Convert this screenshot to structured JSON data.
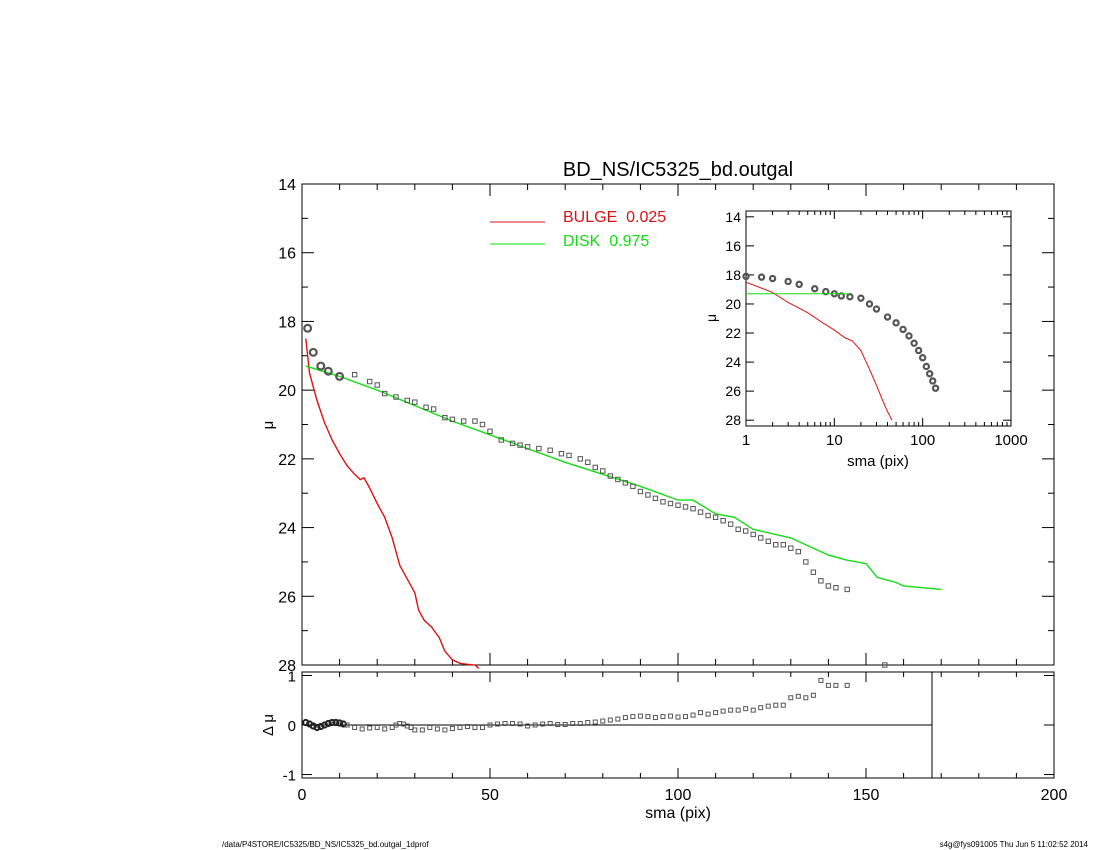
{
  "chart_data": [
    {
      "id": "main",
      "type": "line",
      "title": "BD_NS/IC5325_bd.outgal",
      "xlabel": "",
      "ylabel": "μ",
      "xlim": [
        0,
        200
      ],
      "ylim": [
        28,
        14
      ],
      "y_reversed": true,
      "y_ticks": [
        "14",
        "16",
        "18",
        "20",
        "22",
        "24",
        "26",
        "28"
      ],
      "legend_placement": "top-center",
      "legend": [
        {
          "label": "BULGE  0.025",
          "color": "#dd1111"
        },
        {
          "label": "DISK  0.975",
          "color": "#11dd11"
        }
      ],
      "series": [
        {
          "name": "BULGE  0.025",
          "style": "line",
          "color": "#dd1111",
          "x": [
            1,
            2,
            4,
            6,
            8,
            10,
            12,
            14,
            15.5,
            16.5,
            18,
            20,
            22,
            24,
            26,
            28,
            30,
            31,
            32.5,
            34.5,
            36.5,
            38,
            40,
            42,
            44,
            46,
            47
          ],
          "y": [
            18.5,
            19.5,
            20.3,
            20.95,
            21.45,
            21.85,
            22.2,
            22.45,
            22.6,
            22.55,
            22.85,
            23.3,
            23.7,
            24.3,
            25.1,
            25.5,
            25.9,
            26.4,
            26.7,
            26.9,
            27.2,
            27.6,
            27.85,
            27.95,
            27.98,
            28.0,
            28.1
          ]
        },
        {
          "name": "DISK  0.975",
          "style": "line",
          "color": "#11dd11",
          "x": [
            1,
            10,
            20,
            30,
            40,
            50,
            60,
            70,
            80,
            90,
            100,
            104,
            110,
            115,
            120,
            130,
            140,
            145,
            150,
            153,
            158,
            160,
            170
          ],
          "y": [
            19.3,
            19.6,
            20.0,
            20.45,
            20.9,
            21.3,
            21.7,
            22.1,
            22.45,
            22.8,
            23.2,
            23.2,
            23.6,
            23.7,
            24.05,
            24.3,
            24.8,
            24.95,
            25.05,
            25.45,
            25.6,
            25.7,
            25.8
          ]
        },
        {
          "name": "",
          "style": "points",
          "color": "#555555",
          "x": [
            1.5,
            3,
            5,
            7,
            10,
            14,
            18,
            20,
            22,
            25,
            28,
            30,
            33,
            35,
            38,
            40,
            43,
            46,
            48,
            50,
            53,
            56,
            58,
            60,
            63,
            66,
            69,
            71,
            74,
            76,
            78,
            80,
            82,
            84,
            86,
            88,
            90,
            92,
            94,
            96,
            98,
            100,
            102,
            104,
            106,
            108,
            110,
            112,
            114,
            116,
            118,
            120,
            122,
            124,
            126,
            128,
            130,
            132,
            134,
            136,
            138,
            140,
            142,
            145,
            155
          ],
          "y": [
            18.2,
            18.9,
            19.3,
            19.45,
            19.6,
            19.55,
            19.75,
            19.85,
            20.1,
            20.2,
            20.3,
            20.35,
            20.5,
            20.55,
            20.8,
            20.85,
            20.9,
            20.9,
            21.0,
            21.2,
            21.45,
            21.55,
            21.6,
            21.65,
            21.7,
            21.75,
            21.85,
            21.9,
            22.0,
            22.1,
            22.25,
            22.35,
            22.5,
            22.6,
            22.7,
            22.8,
            22.95,
            23.05,
            23.15,
            23.25,
            23.3,
            23.35,
            23.4,
            23.45,
            23.55,
            23.65,
            23.7,
            23.8,
            23.9,
            24.05,
            24.1,
            24.2,
            24.3,
            24.4,
            24.5,
            24.5,
            24.6,
            24.7,
            25.0,
            25.3,
            25.55,
            25.7,
            25.75,
            25.8,
            28.0
          ]
        }
      ]
    },
    {
      "id": "residual",
      "type": "scatter",
      "xlabel": "sma (pix)",
      "ylabel": "Δ μ",
      "xlim": [
        0,
        200
      ],
      "ylim": [
        -1,
        1
      ],
      "x_ticks": [
        "0",
        "50",
        "100",
        "150",
        "200"
      ],
      "y_ticks": [
        "1",
        "0",
        "-1"
      ],
      "series": [
        {
          "name": "",
          "color": "#555555",
          "x": [
            1,
            2,
            3,
            4,
            5,
            6,
            7,
            8,
            9,
            10,
            11,
            12,
            14,
            16,
            18,
            20,
            22,
            24,
            25,
            26,
            27,
            28,
            29,
            30,
            32,
            34,
            36,
            38,
            40,
            42,
            44,
            46,
            48,
            50,
            52,
            54,
            56,
            58,
            60,
            62,
            64,
            66,
            68,
            70,
            72,
            74,
            76,
            78,
            80,
            82,
            84,
            86,
            88,
            90,
            92,
            94,
            96,
            98,
            100,
            102,
            104,
            106,
            108,
            110,
            112,
            114,
            116,
            118,
            120,
            122,
            124,
            126,
            128,
            130,
            132,
            134,
            136,
            138,
            140,
            142,
            145
          ],
          "y": [
            0.05,
            0.02,
            -0.02,
            -0.05,
            -0.03,
            0.0,
            0.03,
            0.05,
            0.05,
            0.04,
            0.02,
            0.0,
            -0.05,
            -0.08,
            -0.06,
            -0.05,
            -0.08,
            -0.05,
            0.0,
            0.03,
            0.02,
            -0.02,
            -0.05,
            -0.1,
            -0.1,
            -0.05,
            -0.08,
            -0.1,
            -0.07,
            -0.05,
            -0.03,
            -0.05,
            -0.05,
            0.0,
            0.02,
            0.03,
            0.03,
            0.02,
            -0.02,
            0.0,
            0.02,
            0.03,
            0.01,
            0.01,
            0.03,
            0.03,
            0.05,
            0.06,
            0.08,
            0.1,
            0.12,
            0.15,
            0.17,
            0.18,
            0.17,
            0.15,
            0.17,
            0.18,
            0.16,
            0.17,
            0.2,
            0.25,
            0.22,
            0.25,
            0.28,
            0.3,
            0.3,
            0.33,
            0.3,
            0.35,
            0.38,
            0.4,
            0.4,
            0.55,
            0.58,
            0.55,
            0.6,
            0.9,
            0.8,
            0.8,
            0.8
          ]
        }
      ]
    },
    {
      "id": "inset",
      "type": "line",
      "xlabel": "sma (pix)",
      "ylabel": "μ",
      "x_scale": "log",
      "xlim": [
        1,
        1000
      ],
      "ylim": [
        28,
        14
      ],
      "y_reversed": true,
      "x_ticks": [
        "1",
        "10",
        "100",
        "1000"
      ],
      "y_ticks": [
        "14",
        "16",
        "18",
        "20",
        "22",
        "24",
        "26",
        "28"
      ],
      "series": [
        {
          "name": "",
          "style": "thick-points",
          "color": "#555555",
          "x": [
            1,
            1.5,
            2,
            3,
            4,
            6,
            8,
            10,
            12,
            15,
            20,
            25,
            30,
            40,
            50,
            60,
            70,
            80,
            90,
            100,
            110,
            120,
            130,
            140
          ],
          "y": [
            18.1,
            18.15,
            18.25,
            18.45,
            18.65,
            18.95,
            19.15,
            19.3,
            19.45,
            19.5,
            19.6,
            20.0,
            20.35,
            20.9,
            21.3,
            21.75,
            22.2,
            22.7,
            23.2,
            23.7,
            24.3,
            24.8,
            25.3,
            25.8
          ]
        },
        {
          "name": "",
          "style": "line",
          "color": "#dd1111",
          "x": [
            1,
            2,
            3,
            5,
            7,
            10,
            13,
            16,
            20,
            25,
            30,
            35,
            40,
            45
          ],
          "y": [
            18.5,
            19.2,
            19.9,
            20.6,
            21.2,
            21.8,
            22.3,
            22.55,
            23.2,
            24.5,
            25.6,
            26.6,
            27.4,
            28.0
          ]
        },
        {
          "name": "",
          "style": "line",
          "color": "#11dd11",
          "x": [
            1,
            3,
            6,
            10,
            15
          ],
          "y": [
            19.3,
            19.3,
            19.3,
            19.3,
            19.3
          ]
        }
      ]
    }
  ],
  "footer": {
    "left": "/data/P4STORE/IC5325/BD_NS/IC5325_bd.outgal_1dprof",
    "right": "s4g@fys091005  Thu Jun  5 11:02:52 2014"
  }
}
